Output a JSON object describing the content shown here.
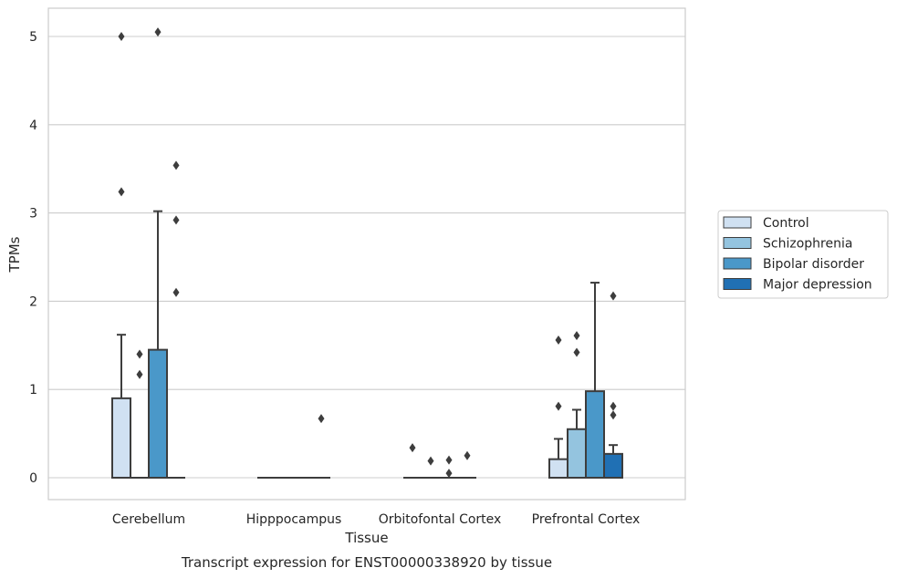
{
  "chart_data": {
    "type": "box",
    "xlabel": "Tissue",
    "ylabel": "TPMs",
    "caption": "Transcript expression for ENST00000338920 by tissue",
    "categories": [
      "Cerebellum",
      "Hipppocampus",
      "Orbitofontal Cortex",
      "Prefrontal Cortex"
    ],
    "ylim": [
      -0.25,
      5.3
    ],
    "yticks": [
      0,
      1,
      2,
      3,
      4,
      5
    ],
    "grid": true,
    "legend_position": "right",
    "series": [
      {
        "name": "Control",
        "color": "#d0e1f2",
        "boxes": [
          {
            "q1": 0,
            "median": 0,
            "q3": 0.9,
            "whisker_low": 0,
            "whisker_high": 1.62,
            "outliers": [
              3.24,
              5.0
            ]
          },
          {
            "q1": 0,
            "median": 0,
            "q3": 0,
            "whisker_low": 0,
            "whisker_high": 0,
            "outliers": []
          },
          {
            "q1": 0,
            "median": 0,
            "q3": 0,
            "whisker_low": 0,
            "whisker_high": 0,
            "outliers": [
              0.34
            ]
          },
          {
            "q1": 0,
            "median": 0,
            "q3": 0.21,
            "whisker_low": 0,
            "whisker_high": 0.44,
            "outliers": [
              0.81,
              1.56
            ]
          }
        ]
      },
      {
        "name": "Schizophrenia",
        "color": "#94c4df",
        "boxes": [
          {
            "q1": 0,
            "median": 0,
            "q3": 0,
            "whisker_low": 0,
            "whisker_high": 0,
            "outliers": [
              1.17,
              1.4
            ]
          },
          {
            "q1": 0,
            "median": 0,
            "q3": 0,
            "whisker_low": 0,
            "whisker_high": 0,
            "outliers": []
          },
          {
            "q1": 0,
            "median": 0,
            "q3": 0,
            "whisker_low": 0,
            "whisker_high": 0,
            "outliers": [
              0.19
            ]
          },
          {
            "q1": 0,
            "median": 0,
            "q3": 0.55,
            "whisker_low": 0,
            "whisker_high": 0.77,
            "outliers": [
              1.42,
              1.61
            ]
          }
        ]
      },
      {
        "name": "Bipolar disorder",
        "color": "#4a98c9",
        "boxes": [
          {
            "q1": 0,
            "median": 0,
            "q3": 1.45,
            "whisker_low": 0,
            "whisker_high": 3.02,
            "outliers": [
              5.05
            ]
          },
          {
            "q1": 0,
            "median": 0,
            "q3": 0,
            "whisker_low": 0,
            "whisker_high": 0,
            "outliers": []
          },
          {
            "q1": 0,
            "median": 0,
            "q3": 0,
            "whisker_low": 0,
            "whisker_high": 0,
            "outliers": [
              0.05,
              0.2
            ]
          },
          {
            "q1": 0,
            "median": 0,
            "q3": 0.98,
            "whisker_low": 0,
            "whisker_high": 2.21,
            "outliers": []
          }
        ]
      },
      {
        "name": "Major depression",
        "color": "#2070b4",
        "boxes": [
          {
            "q1": 0,
            "median": 0,
            "q3": 0,
            "whisker_low": 0,
            "whisker_high": 0,
            "outliers": [
              2.1,
              2.92,
              3.54
            ]
          },
          {
            "q1": 0,
            "median": 0,
            "q3": 0,
            "whisker_low": 0,
            "whisker_high": 0,
            "outliers": [
              0.67
            ]
          },
          {
            "q1": 0,
            "median": 0,
            "q3": 0,
            "whisker_low": 0,
            "whisker_high": 0,
            "outliers": [
              0.25
            ]
          },
          {
            "q1": 0,
            "median": 0,
            "q3": 0.27,
            "whisker_low": 0,
            "whisker_high": 0.37,
            "outliers": [
              0.71,
              0.81,
              2.06
            ]
          }
        ]
      }
    ]
  }
}
